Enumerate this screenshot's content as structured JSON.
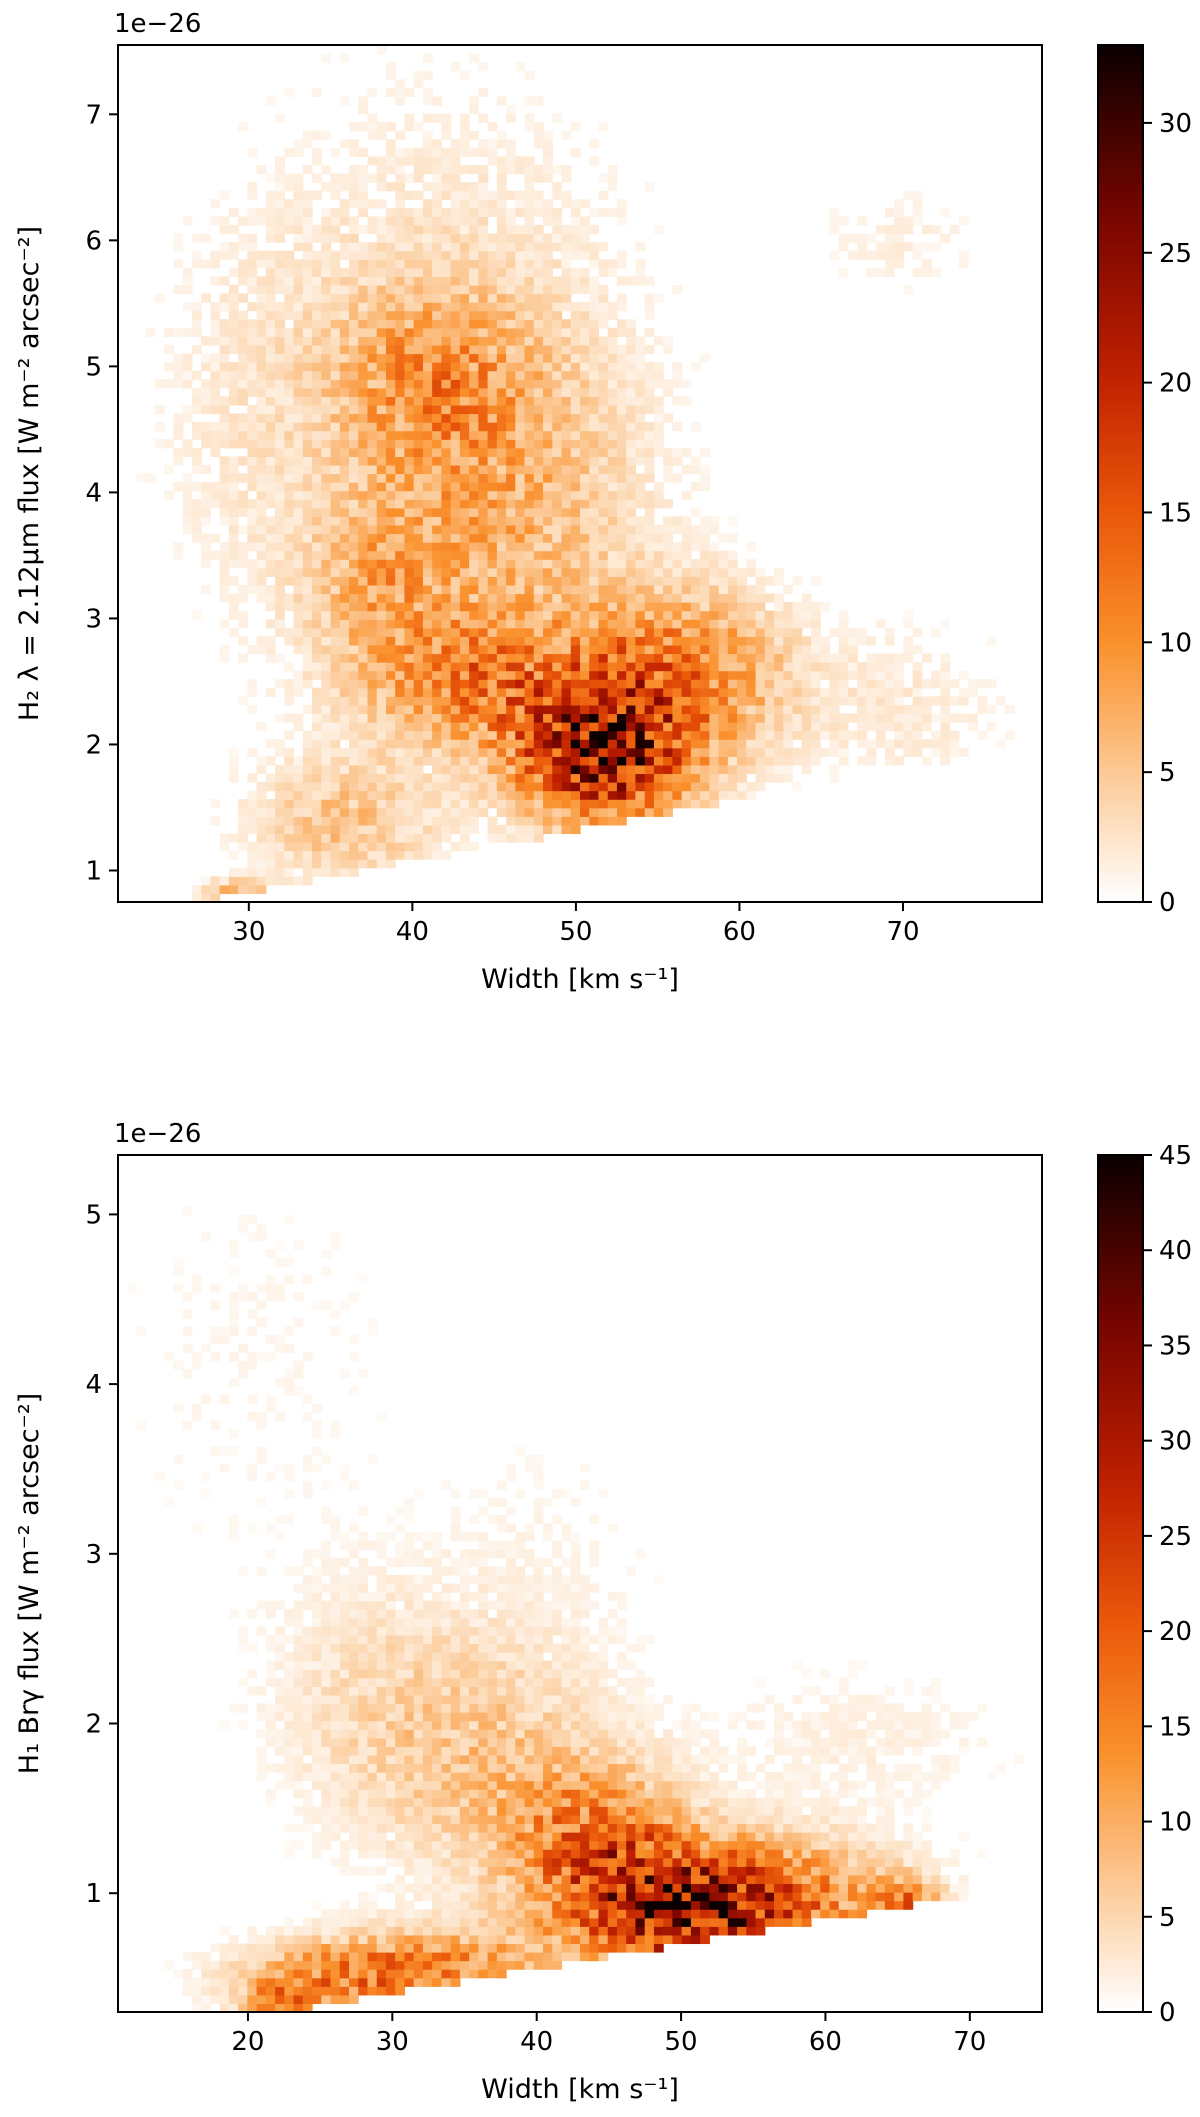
{
  "chart_data": [
    {
      "type": "heatmap",
      "title": "",
      "xlabel": "Width [km s⁻¹]",
      "ylabel": "H₂ λ = 2.12μm flux [W m⁻² arcsec⁻²]",
      "offset_text": "1e−26",
      "xlim": [
        22,
        78.5
      ],
      "ylim": [
        0.75,
        7.55
      ],
      "xticks": [
        30,
        40,
        50,
        60,
        70
      ],
      "yticks": [
        1,
        2,
        3,
        4,
        5,
        6,
        7
      ],
      "colorbar": {
        "min": 0,
        "max": 33,
        "ticks": [
          0,
          5,
          10,
          15,
          20,
          25,
          30
        ]
      },
      "density_components": [
        {
          "x": 51.5,
          "y": 1.9,
          "sx": 3.5,
          "sy": 0.35,
          "amp": 26
        },
        {
          "x": 56,
          "y": 2.55,
          "sx": 4.5,
          "sy": 0.45,
          "amp": 13
        },
        {
          "x": 44,
          "y": 2.5,
          "sx": 5,
          "sy": 0.35,
          "amp": 11
        },
        {
          "x": 45,
          "y": 3.9,
          "sx": 6,
          "sy": 0.9,
          "amp": 7
        },
        {
          "x": 41,
          "y": 4.9,
          "sx": 4,
          "sy": 0.5,
          "amp": 7
        },
        {
          "x": 36,
          "y": 1.4,
          "sx": 4,
          "sy": 0.35,
          "amp": 6
        },
        {
          "x": 42,
          "y": 5.6,
          "sx": 8,
          "sy": 1.2,
          "amp": 2.5
        },
        {
          "x": 70,
          "y": 2.3,
          "sx": 5,
          "sy": 0.5,
          "amp": 2
        },
        {
          "x": 70,
          "y": 6.0,
          "sx": 4,
          "sy": 0.3,
          "amp": 1.5
        },
        {
          "x": 30,
          "y": 4.5,
          "sx": 4,
          "sy": 1.2,
          "amp": 1.8
        },
        {
          "x": 38,
          "y": 3.3,
          "sx": 3,
          "sy": 0.4,
          "amp": 6
        },
        {
          "x": 29.5,
          "y": 0.82,
          "sx": 1.5,
          "sy": 0.08,
          "amp": 8
        }
      ],
      "lower_boundary_line": {
        "x": [
          28,
          65
        ],
        "y": [
          0.8,
          1.7
        ]
      }
    },
    {
      "type": "heatmap",
      "title": "",
      "xlabel": "Width [km s⁻¹]",
      "ylabel": "H₁ Brγ flux [W m⁻² arcsec⁻²]",
      "offset_text": "1e−26",
      "xlim": [
        11,
        75
      ],
      "ylim": [
        0.3,
        5.35
      ],
      "xticks": [
        20,
        30,
        40,
        50,
        60,
        70
      ],
      "yticks": [
        1,
        2,
        3,
        4,
        5
      ],
      "colorbar": {
        "min": 0,
        "max": 45,
        "ticks": [
          0,
          5,
          10,
          15,
          20,
          25,
          30,
          35,
          40,
          45
        ]
      },
      "density_components": [
        {
          "x": 50,
          "y": 0.9,
          "sx": 5,
          "sy": 0.25,
          "amp": 32
        },
        {
          "x": 57,
          "y": 0.95,
          "sx": 6,
          "sy": 0.25,
          "amp": 14
        },
        {
          "x": 44,
          "y": 1.3,
          "sx": 4,
          "sy": 0.3,
          "amp": 18
        },
        {
          "x": 36,
          "y": 1.8,
          "sx": 6,
          "sy": 0.5,
          "amp": 7
        },
        {
          "x": 28,
          "y": 2.2,
          "sx": 5,
          "sy": 0.5,
          "amp": 3
        },
        {
          "x": 27,
          "y": 0.5,
          "sx": 5,
          "sy": 0.15,
          "amp": 18
        },
        {
          "x": 35,
          "y": 0.6,
          "sx": 5,
          "sy": 0.15,
          "amp": 10
        },
        {
          "x": 20,
          "y": 4.2,
          "sx": 7,
          "sy": 0.9,
          "amp": 1.2
        },
        {
          "x": 62,
          "y": 1.9,
          "sx": 8,
          "sy": 0.3,
          "amp": 2
        },
        {
          "x": 40,
          "y": 3.0,
          "sx": 6,
          "sy": 0.6,
          "amp": 1.2
        },
        {
          "x": 65.5,
          "y": 0.95,
          "sx": 1.5,
          "sy": 0.1,
          "amp": 14
        },
        {
          "x": 22,
          "y": 0.35,
          "sx": 1.5,
          "sy": 0.08,
          "amp": 12
        }
      ],
      "lower_boundary_line": {
        "x": [
          21,
          66
        ],
        "y": [
          0.3,
          0.95
        ]
      }
    }
  ]
}
